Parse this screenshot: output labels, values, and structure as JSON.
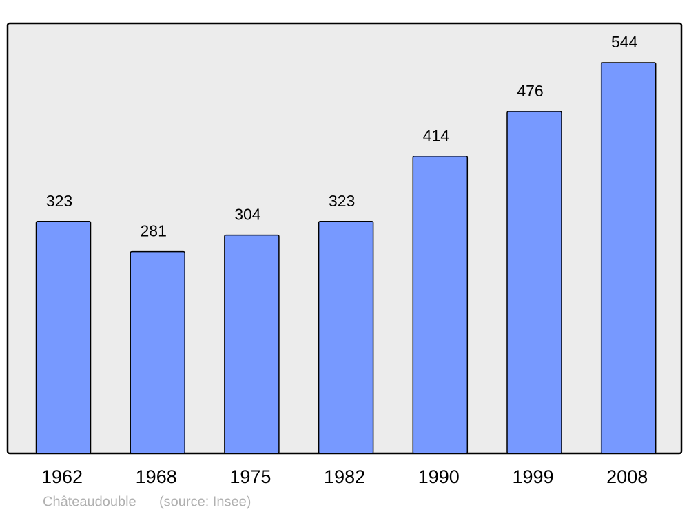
{
  "chart_data": {
    "type": "bar",
    "categories": [
      "1962",
      "1968",
      "1975",
      "1982",
      "1990",
      "1999",
      "2008"
    ],
    "values": [
      323,
      281,
      304,
      323,
      414,
      476,
      544
    ],
    "color": "#7799ff",
    "caption": "Châteaudouble",
    "source": "(source: Insee)"
  }
}
